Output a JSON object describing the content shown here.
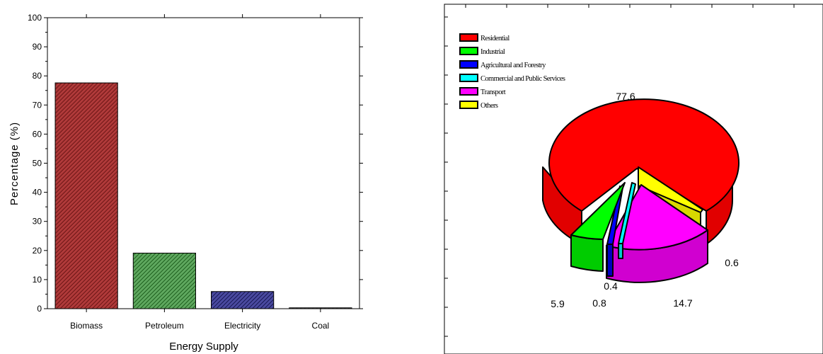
{
  "chart_data": [
    {
      "type": "bar",
      "categories": [
        "Biomass",
        "Petroleum",
        "Electricity",
        "Coal"
      ],
      "values": [
        77.6,
        19.1,
        5.9,
        0.3
      ],
      "xlabel": "Energy Supply",
      "ylabel": "Percentage (%)",
      "ylim": [
        0,
        100
      ],
      "yticks": [
        0,
        10,
        20,
        30,
        40,
        50,
        60,
        70,
        80,
        90,
        100
      ],
      "bar_colors": [
        "#8b1a1a",
        "#2e7d2e",
        "#1a1a6e",
        "#333333"
      ],
      "pattern": "diagonal-hatch",
      "grid": false
    },
    {
      "type": "pie",
      "style": "3d-exploded",
      "labels": [
        "Residential",
        "Industrial",
        "Agricultural and Forestry",
        "Commercial and Public Services",
        "Transport",
        "Others"
      ],
      "colors": [
        "#ff0000",
        "#00ff00",
        "#0000ff",
        "#00ffff",
        "#ff00ff",
        "#ffff00"
      ],
      "value_labels": [
        "77.6",
        "5.9",
        "0.8",
        "0.4",
        "14.7",
        "0.6"
      ],
      "legend_position": "top-left"
    }
  ]
}
